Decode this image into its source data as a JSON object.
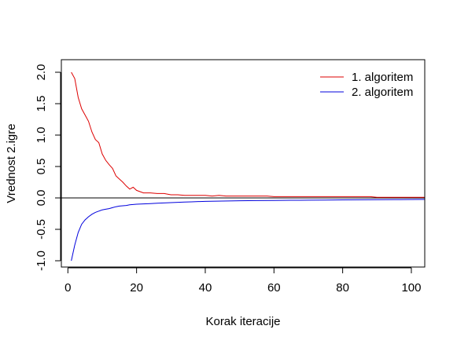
{
  "chart_data": {
    "type": "line",
    "title": "",
    "xlabel": "Korak iteracije",
    "ylabel": "Vrednost 2.igre",
    "xlim": [
      -1.9,
      103.9
    ],
    "ylim": [
      -1.1,
      2.2
    ],
    "x_ticks": [
      {
        "value": 0,
        "label": "0"
      },
      {
        "value": 20,
        "label": "20"
      },
      {
        "value": 40,
        "label": "40"
      },
      {
        "value": 60,
        "label": "60"
      },
      {
        "value": 80,
        "label": "80"
      },
      {
        "value": 100,
        "label": "100"
      }
    ],
    "y_ticks": [
      {
        "value": -1.0,
        "label": "-1.0"
      },
      {
        "value": -0.5,
        "label": "-0.5"
      },
      {
        "value": 0.0,
        "label": "0.0"
      },
      {
        "value": 0.5,
        "label": "0.5"
      },
      {
        "value": 1.0,
        "label": "1.0"
      },
      {
        "value": 1.5,
        "label": "1.5"
      },
      {
        "value": 2.0,
        "label": "2.0"
      }
    ],
    "reference_line_y": 0,
    "grid": false,
    "legend": {
      "placement": "top-right",
      "frame": false
    },
    "series": [
      {
        "name": "1. algoritem",
        "color": "#dd0000",
        "x": [
          1,
          2,
          3,
          4,
          5,
          6,
          7,
          8,
          9,
          10,
          11,
          12,
          13,
          14,
          15,
          16,
          17,
          18,
          19,
          20,
          22,
          24,
          26,
          28,
          30,
          32,
          34,
          36,
          38,
          40,
          42,
          44,
          46,
          48,
          50,
          52,
          54,
          56,
          58,
          60,
          62,
          64,
          66,
          68,
          70,
          72,
          74,
          76,
          78,
          80,
          82,
          84,
          86,
          88,
          90,
          92,
          94,
          96,
          98,
          100,
          102,
          104
        ],
        "y": [
          2.0,
          1.9,
          1.6,
          1.42,
          1.32,
          1.22,
          1.05,
          0.93,
          0.88,
          0.7,
          0.6,
          0.53,
          0.47,
          0.35,
          0.3,
          0.25,
          0.19,
          0.14,
          0.17,
          0.12,
          0.08,
          0.08,
          0.07,
          0.07,
          0.05,
          0.05,
          0.04,
          0.04,
          0.04,
          0.04,
          0.03,
          0.04,
          0.03,
          0.03,
          0.03,
          0.03,
          0.03,
          0.03,
          0.03,
          0.02,
          0.02,
          0.02,
          0.02,
          0.02,
          0.02,
          0.02,
          0.02,
          0.02,
          0.02,
          0.02,
          0.02,
          0.02,
          0.02,
          0.02,
          0.01,
          0.01,
          0.01,
          0.01,
          0.01,
          0.01,
          0.01,
          0.01
        ]
      },
      {
        "name": "2. algoritem",
        "color": "#0000dd",
        "x": [
          1,
          2,
          3,
          4,
          5,
          6,
          7,
          8,
          9,
          10,
          11,
          12,
          13,
          14,
          15,
          16,
          17,
          18,
          19,
          20,
          22,
          24,
          26,
          28,
          30,
          32,
          34,
          36,
          38,
          40,
          45,
          50,
          55,
          60,
          65,
          70,
          75,
          80,
          85,
          90,
          95,
          100,
          104
        ],
        "y": [
          -1.0,
          -0.75,
          -0.55,
          -0.42,
          -0.35,
          -0.3,
          -0.26,
          -0.23,
          -0.21,
          -0.19,
          -0.18,
          -0.17,
          -0.155,
          -0.14,
          -0.13,
          -0.125,
          -0.12,
          -0.11,
          -0.105,
          -0.1,
          -0.095,
          -0.09,
          -0.085,
          -0.08,
          -0.075,
          -0.07,
          -0.066,
          -0.062,
          -0.058,
          -0.055,
          -0.05,
          -0.045,
          -0.042,
          -0.04,
          -0.038,
          -0.036,
          -0.034,
          -0.032,
          -0.03,
          -0.028,
          -0.027,
          -0.025,
          -0.024
        ]
      }
    ]
  }
}
